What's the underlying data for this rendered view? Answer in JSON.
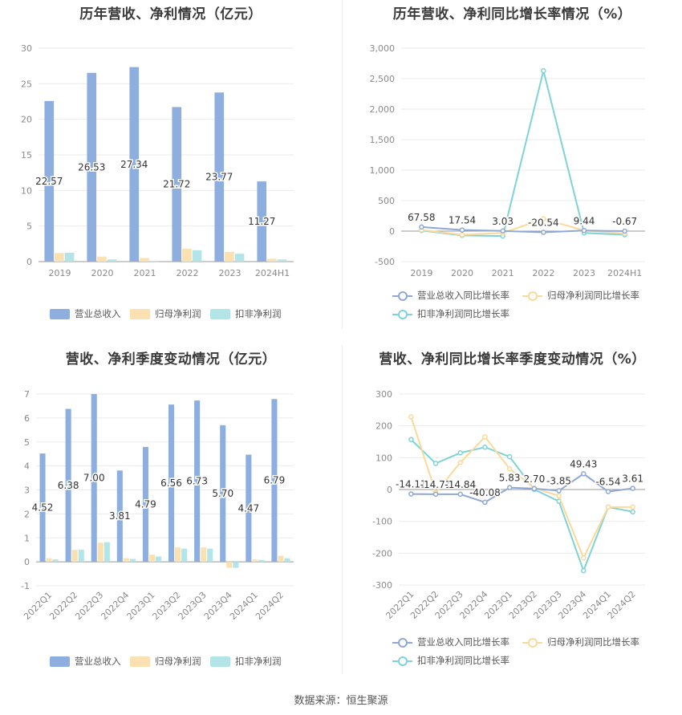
{
  "footer": "数据来源：恒生聚源",
  "colors": {
    "revenue": "#8eaedf",
    "net": "#fbe1b1",
    "deduct": "#b2e4e8",
    "line_revenue": "#8ea8d8",
    "line_net": "#fbd99a",
    "line_deduct": "#7fd3d6"
  },
  "chart_data": [
    {
      "id": "annual_values",
      "type": "bar",
      "title": "历年营收、净利情况（亿元）",
      "categories": [
        "2019",
        "2020",
        "2021",
        "2022",
        "2023",
        "2024H1"
      ],
      "ylim": [
        0,
        30
      ],
      "yticks": [
        0,
        5,
        10,
        15,
        20,
        25,
        30
      ],
      "series": [
        {
          "name": "营业总收入",
          "values": [
            22.57,
            26.53,
            27.34,
            21.72,
            23.77,
            11.27
          ],
          "labels": [
            "22.57",
            "26.53",
            "27.34",
            "21.72",
            "23.77",
            "11.27"
          ]
        },
        {
          "name": "归母净利润",
          "values": [
            1.2,
            0.7,
            0.5,
            1.8,
            1.35,
            0.4
          ]
        },
        {
          "name": "扣非净利润",
          "values": [
            1.25,
            0.3,
            0.1,
            1.6,
            1.1,
            0.3
          ]
        }
      ],
      "legend": "bottom"
    },
    {
      "id": "annual_growth",
      "type": "line",
      "title": "历年营收、净利同比增长率情况（%）",
      "categories": [
        "2019",
        "2020",
        "2021",
        "2022",
        "2023",
        "2024H1"
      ],
      "ylim": [
        -500,
        3000
      ],
      "yticks": [
        -500,
        0,
        500,
        1000,
        1500,
        2000,
        2500,
        3000
      ],
      "ytick_labels": [
        "-500",
        "0",
        "500",
        "1,000",
        "1,500",
        "2,000",
        "2,500",
        "3,000"
      ],
      "series": [
        {
          "name": "营业总收入同比增长率",
          "values": [
            67.58,
            17.54,
            3.03,
            -20.54,
            9.44,
            -0.67
          ],
          "labels": [
            "67.58",
            "17.54",
            "3.03",
            "-20.54",
            "9.44",
            "-0.67"
          ]
        },
        {
          "name": "归母净利润同比增长率",
          "values": [
            20,
            -60,
            -30,
            200,
            10,
            -40
          ]
        },
        {
          "name": "扣非净利润同比增长率",
          "values": [
            10,
            -70,
            -80,
            2630,
            -30,
            -60
          ]
        }
      ],
      "legend": "bottom"
    },
    {
      "id": "quarterly_values",
      "type": "bar",
      "title": "营收、净利季度变动情况（亿元）",
      "categories": [
        "2022Q1",
        "2022Q2",
        "2022Q3",
        "2022Q4",
        "2023Q1",
        "2023Q2",
        "2023Q3",
        "2023Q4",
        "2024Q1",
        "2024Q2"
      ],
      "ylim": [
        -1,
        7
      ],
      "yticks": [
        -1,
        0,
        1,
        2,
        3,
        4,
        5,
        6,
        7
      ],
      "series": [
        {
          "name": "营业总收入",
          "values": [
            4.52,
            6.38,
            7.0,
            3.81,
            4.79,
            6.56,
            6.73,
            5.7,
            4.47,
            6.79
          ],
          "labels": [
            "4.52",
            "6.38",
            "7.00",
            "3.81",
            "4.79",
            "6.56",
            "6.73",
            "5.70",
            "4.47",
            "6.79"
          ]
        },
        {
          "name": "归母净利润",
          "values": [
            0.15,
            0.5,
            0.8,
            0.15,
            0.3,
            0.6,
            0.6,
            -0.25,
            0.1,
            0.25
          ]
        },
        {
          "name": "扣非净利润",
          "values": [
            0.1,
            0.5,
            0.82,
            0.12,
            0.22,
            0.55,
            0.55,
            -0.25,
            0.08,
            0.15
          ]
        }
      ],
      "legend": "bottom"
    },
    {
      "id": "quarterly_growth",
      "type": "line",
      "title": "营收、净利同比增长率季度变动情况（%）",
      "categories": [
        "2022Q1",
        "2022Q2",
        "2022Q3",
        "2022Q4",
        "2023Q1",
        "2023Q2",
        "2023Q3",
        "2023Q4",
        "2024Q1",
        "2024Q2"
      ],
      "ylim": [
        -300,
        300
      ],
      "yticks": [
        -300,
        -200,
        -100,
        0,
        100,
        200,
        300
      ],
      "series": [
        {
          "name": "营业总收入同比增长率",
          "values": [
            -14.11,
            -14.71,
            -14.84,
            -40.08,
            5.83,
            2.7,
            -3.85,
            49.43,
            -6.54,
            3.61
          ],
          "labels": [
            "-14.11",
            "-14.71",
            "-14.84",
            "-40.08",
            "5.83",
            "2.70",
            "-3.85",
            "49.43",
            "-6.54",
            "3.61"
          ]
        },
        {
          "name": "归母净利润同比增长率",
          "values": [
            228,
            -10,
            85,
            165,
            65,
            5,
            -20,
            -215,
            -55,
            -55
          ]
        },
        {
          "name": "扣非净利润同比增长率",
          "values": [
            157,
            82,
            115,
            133,
            103,
            0,
            -37,
            -255,
            -55,
            -70
          ]
        }
      ],
      "legend": "bottom"
    }
  ]
}
